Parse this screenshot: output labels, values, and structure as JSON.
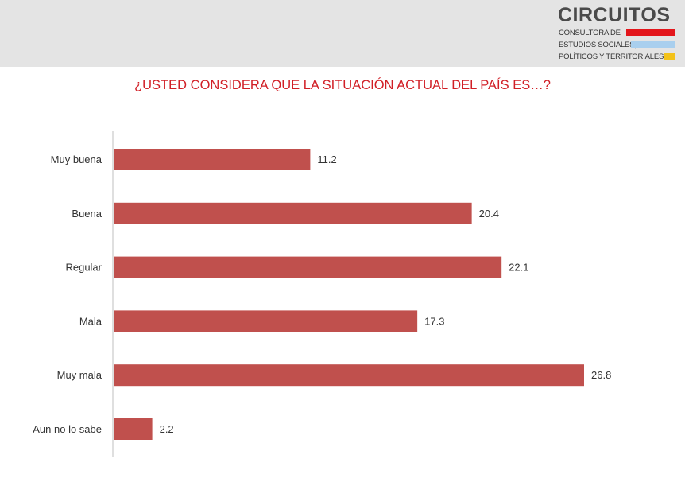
{
  "logo": {
    "title": "CIRCUITOS",
    "lines": [
      "CONSULTORA DE",
      "ESTUDIOS SOCIALES,",
      "POLÍTICOS Y TERRITORIALES"
    ],
    "bar_colors": [
      "#e3161b",
      "#a9cfee",
      "#f3c21a"
    ]
  },
  "chart_data": {
    "type": "bar",
    "orientation": "horizontal",
    "title": "¿USTED CONSIDERA QUE LA SITUACIÓN ACTUAL DEL PAÍS ES…?",
    "categories": [
      "Muy buena",
      "Buena",
      "Regular",
      "Mala",
      "Muy mala",
      "Aun no lo sabe"
    ],
    "values": [
      11.2,
      20.4,
      22.1,
      17.3,
      26.8,
      2.2
    ],
    "value_labels": [
      "11.2",
      "20.4",
      "22.1",
      "17.3",
      "26.8",
      "2.2"
    ],
    "xlim": [
      0,
      30
    ],
    "bar_color": "#c0504d",
    "title_color": "#d11f26",
    "grid": false,
    "legend": "none"
  }
}
